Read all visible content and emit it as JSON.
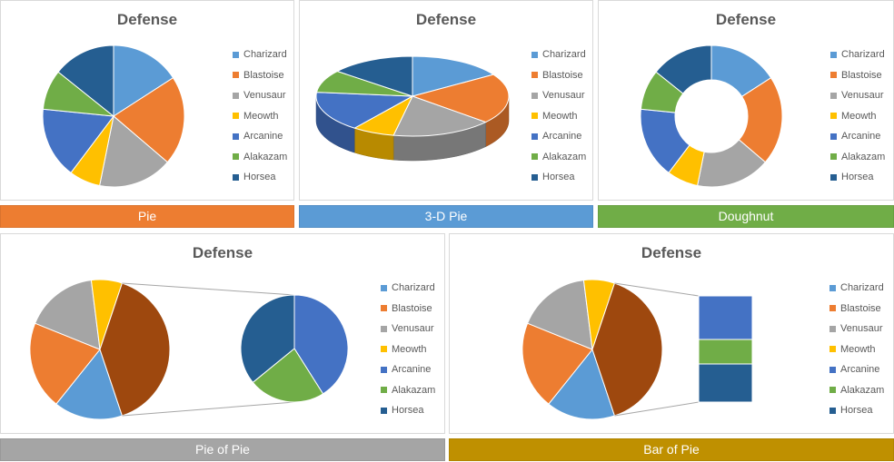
{
  "chart_data": [
    {
      "type": "pie",
      "title": "Defense",
      "variant": "Pie",
      "categories": [
        "Charizard",
        "Blastoise",
        "Venusaur",
        "Meowth",
        "Arcanine",
        "Alakazam",
        "Horsea"
      ],
      "values": [
        78,
        100,
        83,
        35,
        80,
        45,
        70
      ],
      "legend": "right"
    },
    {
      "type": "pie",
      "title": "Defense",
      "variant": "3-D Pie",
      "categories": [
        "Charizard",
        "Blastoise",
        "Venusaur",
        "Meowth",
        "Arcanine",
        "Alakazam",
        "Horsea"
      ],
      "values": [
        78,
        100,
        83,
        35,
        80,
        45,
        70
      ],
      "legend": "right"
    },
    {
      "type": "pie",
      "title": "Defense",
      "variant": "Doughnut",
      "categories": [
        "Charizard",
        "Blastoise",
        "Venusaur",
        "Meowth",
        "Arcanine",
        "Alakazam",
        "Horsea"
      ],
      "values": [
        78,
        100,
        83,
        35,
        80,
        45,
        70
      ],
      "legend": "right"
    },
    {
      "type": "pie",
      "title": "Defense",
      "variant": "Pie of Pie",
      "categories": [
        "Charizard",
        "Blastoise",
        "Venusaur",
        "Meowth",
        "Arcanine",
        "Alakazam",
        "Horsea"
      ],
      "values": [
        78,
        100,
        83,
        35,
        80,
        45,
        70
      ],
      "legend": "right"
    },
    {
      "type": "pie",
      "title": "Defense",
      "variant": "Bar of Pie",
      "categories": [
        "Charizard",
        "Blastoise",
        "Venusaur",
        "Meowth",
        "Arcanine",
        "Alakazam",
        "Horsea"
      ],
      "values": [
        78,
        100,
        83,
        35,
        80,
        45,
        70
      ],
      "legend": "right"
    }
  ],
  "colors": {
    "Charizard": "#5b9bd5",
    "Blastoise": "#ed7d31",
    "Venusaur": "#a5a5a5",
    "Meowth": "#ffc000",
    "Arcanine": "#4472c4",
    "Alakazam": "#70ad47",
    "Horsea": "#255e91",
    "other_slice": "#9e480e"
  },
  "labels": {
    "pie": "Pie",
    "pie3d": "3-D Pie",
    "doughnut": "Doughnut",
    "pieofpie": "Pie of Pie",
    "barofpie": "Bar of Pie"
  },
  "band_colors": {
    "pie": "#ed7d31",
    "pie3d": "#5b9bd5",
    "doughnut": "#70ad47",
    "pieofpie": "#a5a5a5",
    "barofpie": "#bf9000"
  }
}
